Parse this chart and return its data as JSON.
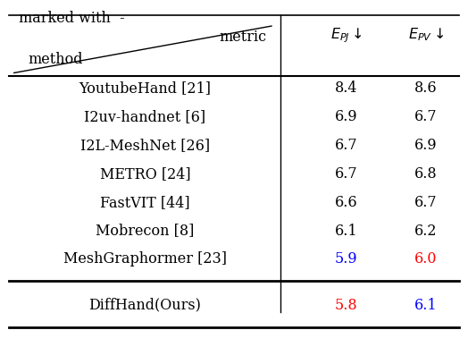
{
  "title_text": "marked with  -",
  "header_metric": "metric",
  "header_method": "method",
  "col1_header": "$E_{PJ}\\downarrow$",
  "col2_header": "$E_{PV}\\downarrow$",
  "rows": [
    {
      "method": "YoutubeHand [21]",
      "epj": "8.4",
      "epv": "8.6",
      "epj_color": "black",
      "epv_color": "black"
    },
    {
      "method": "I2uv-handnet [6]",
      "epj": "6.9",
      "epv": "6.7",
      "epj_color": "black",
      "epv_color": "black"
    },
    {
      "method": "I2L-MeshNet [26]",
      "epj": "6.7",
      "epv": "6.9",
      "epj_color": "black",
      "epv_color": "black"
    },
    {
      "method": "METRO [24]",
      "epj": "6.7",
      "epv": "6.8",
      "epj_color": "black",
      "epv_color": "black"
    },
    {
      "method": "FastVIT [44]",
      "epj": "6.6",
      "epv": "6.7",
      "epj_color": "black",
      "epv_color": "black"
    },
    {
      "method": "Mobrecon [8]",
      "epj": "6.1",
      "epv": "6.2",
      "epj_color": "black",
      "epv_color": "black"
    },
    {
      "method": "MeshGraphormer [23]",
      "epj": "5.9",
      "epv": "6.0",
      "epj_color": "blue",
      "epv_color": "red"
    }
  ],
  "ours_row": {
    "method": "DiffHand(Ours)",
    "epj": "5.8",
    "epv": "6.1",
    "epj_color": "red",
    "epv_color": "blue"
  },
  "bg_color": "white",
  "font_size": 11.5,
  "header_font_size": 11.5
}
